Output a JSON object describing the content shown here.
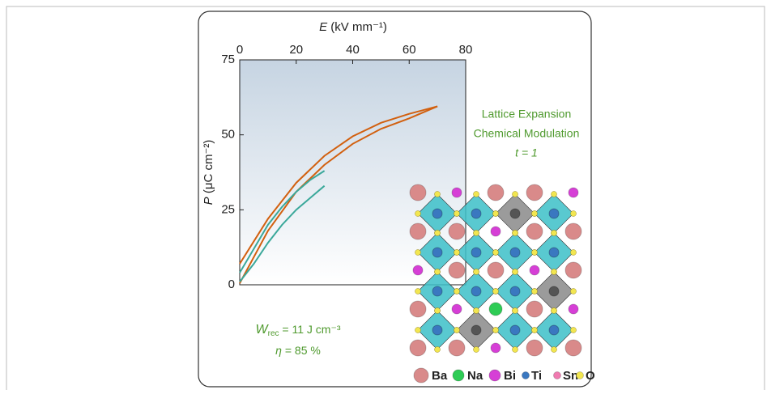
{
  "chart_data": {
    "type": "line",
    "xlabel": {
      "symbol": "E",
      "text": " (kV mm⁻¹)"
    },
    "ylabel": {
      "symbol": "P",
      "text": " (μC cm⁻²)"
    },
    "xlim": [
      0,
      80
    ],
    "xticks": [
      0,
      20,
      40,
      60,
      80
    ],
    "ylim": [
      0,
      75
    ],
    "yticks": [
      0,
      25,
      50,
      75
    ],
    "series": [
      {
        "color": "#d2600f",
        "x": [
          0,
          10,
          20,
          30,
          40,
          50,
          60,
          70
        ],
        "values": [
          7,
          22,
          34,
          43,
          49.5,
          54,
          57,
          59.5
        ]
      },
      {
        "color": "#d2600f",
        "x": [
          70,
          60,
          50,
          40,
          30,
          20,
          10,
          0
        ],
        "values": [
          59.5,
          55.5,
          52,
          47,
          40,
          31,
          18,
          0.5
        ]
      },
      {
        "color": "#3aa89a",
        "x": [
          0,
          5,
          10,
          15,
          20,
          25,
          30
        ],
        "values": [
          4,
          12,
          20,
          26,
          31,
          35,
          38
        ]
      },
      {
        "color": "#3aa89a",
        "x": [
          0,
          5,
          10,
          15,
          20,
          25,
          30
        ],
        "values": [
          1,
          7,
          14,
          20,
          25,
          29,
          33
        ]
      }
    ],
    "annotations": {
      "wrec": {
        "symbol": "W",
        "sub": "rec",
        "text": " = 11 J cm⁻³"
      },
      "eta": {
        "symbol": "η",
        "text": " = 85 %"
      },
      "lines": [
        "Lattice Expansion",
        "Chemical Modulation",
        "t = 1"
      ]
    }
  },
  "structure_legend": [
    {
      "label": "Ba",
      "color": "#d98a8a"
    },
    {
      "label": "Na",
      "color": "#2ecc55"
    },
    {
      "label": "Bi",
      "color": "#d63fd6"
    },
    {
      "label": "Ti",
      "color": "#3a78c0"
    },
    {
      "label": "Sn",
      "color": "#f07ab0"
    },
    {
      "label": "O",
      "color": "#f2e650"
    }
  ]
}
